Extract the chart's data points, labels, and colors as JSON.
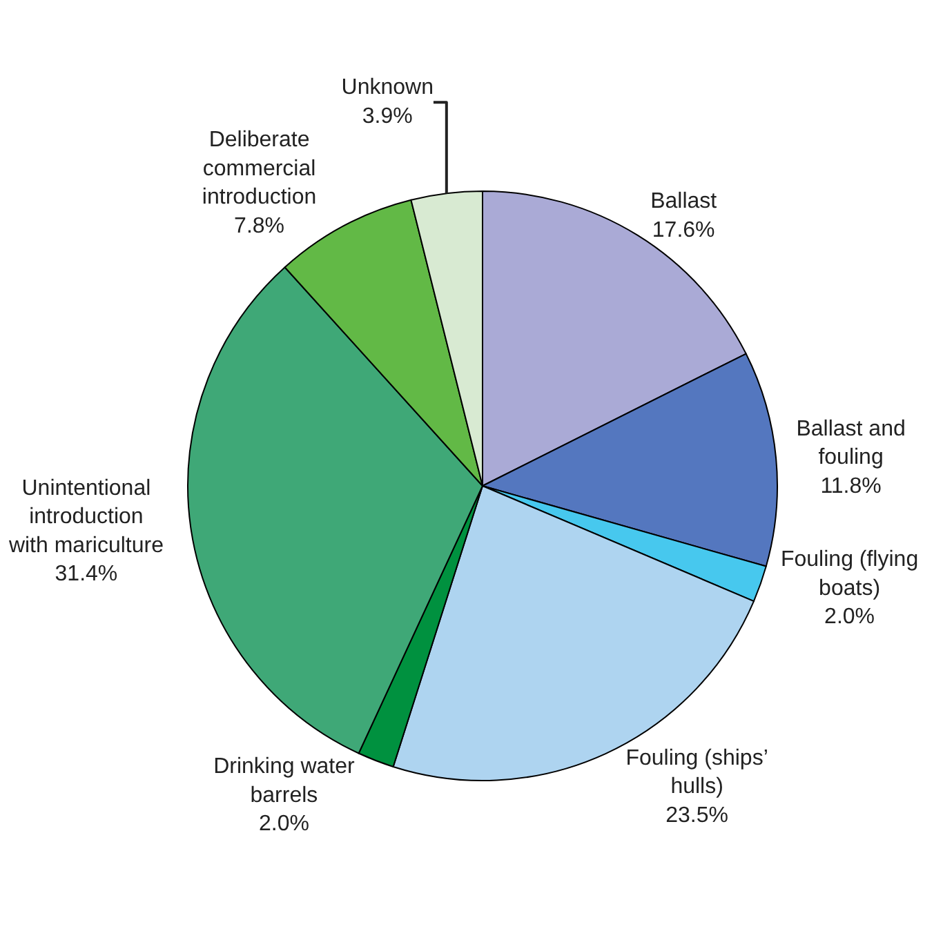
{
  "chart_data": {
    "type": "pie",
    "categories": [
      "Ballast",
      "Ballast and fouling",
      "Fouling (flying boats)",
      "Fouling (ships’ hulls)",
      "Drinking water barrels",
      "Unintentional introduction with mariculture",
      "Deliberate commercial introduction",
      "Unknown"
    ],
    "values": [
      17.6,
      11.8,
      2.0,
      23.5,
      2.0,
      31.4,
      7.8,
      3.9
    ],
    "value_labels": [
      "17.6%",
      "11.8%",
      "2.0%",
      "23.5%",
      "2.0%",
      "31.4%",
      "7.8%",
      "3.9%"
    ],
    "colors": [
      "#aaaad6",
      "#5477bf",
      "#47c8ee",
      "#aed4f0",
      "#00913f",
      "#3fa877",
      "#62b946",
      "#d8ead2"
    ]
  }
}
